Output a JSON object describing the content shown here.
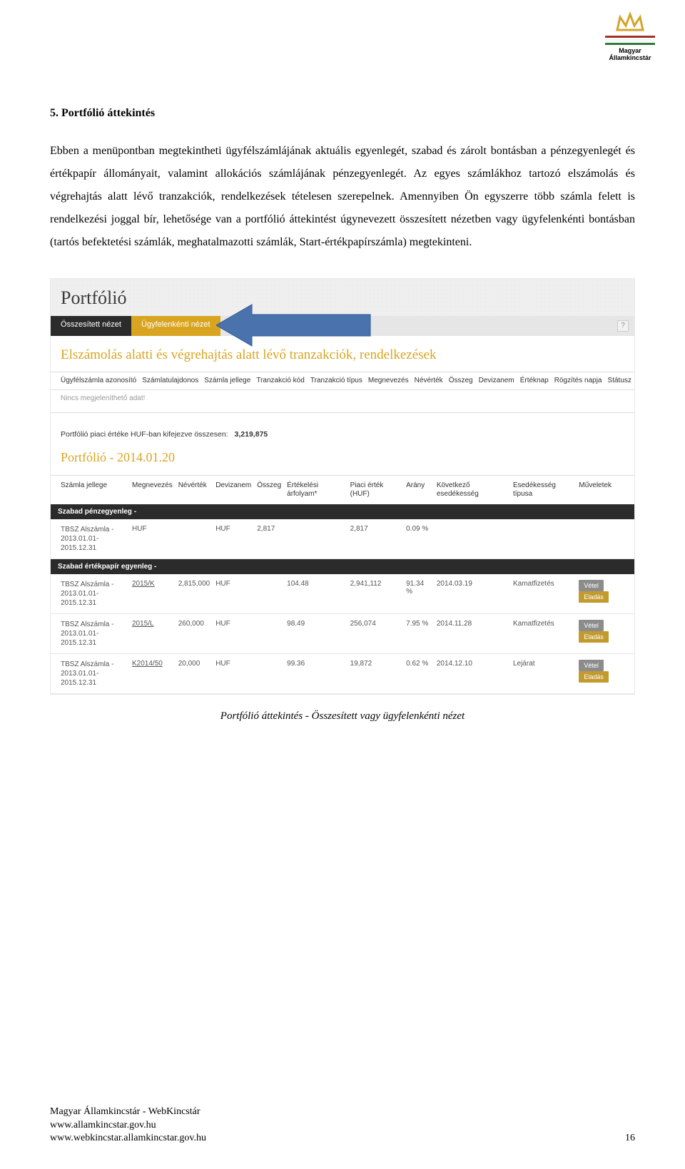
{
  "logo": {
    "org_line1": "Magyar",
    "org_line2": "Államkincstár",
    "bar_colors": [
      "#a03129",
      "#ffffff",
      "#2f7a3c"
    ],
    "icon_color": "#d2a52a"
  },
  "heading": "5. Portfólió áttekintés",
  "paragraph": "Ebben a menüpontban megtekintheti ügyfélszámlájának aktuális egyenlegét, szabad és zárolt bontásban a pénzegyenlegét és értékpapír állományait, valamint allokációs számlájának pénzegyenlegét. Az egyes számlákhoz tartozó elszámolás és végrehajtás alatt lévő tranzakciók, rendelkezések tételesen szerepelnek. Amennyiben Ön egyszerre több számla felett is rendelkezési joggal bír, lehetősége van a portfólió áttekintést úgynevezett összesített nézetben vagy ügyfelenkénti bontásban (tartós befektetési számlák, meghatalmazotti számlák, Start-értékpapírszámla) megtekinteni.",
  "screenshot": {
    "header_title": "Portfólió",
    "tabs": {
      "t1": "Összesített nézet",
      "t2": "Ügyfelenkénti nézet"
    },
    "help": "?",
    "arrow_color": "#4a73ad",
    "sub_heading": "Elszámolás alatti és végrehajtás alatt lévő tranzakciók, rendelkezések",
    "tx_columns": [
      "Ügyfélszámla azonosító",
      "Számlatulajdonos",
      "Számla jellege",
      "Tranzakció kód",
      "Tranzakció típus",
      "Megnevezés",
      "Névérték",
      "Összeg",
      "Devizanem",
      "Értéknap",
      "Rögzítés napja",
      "Státusz"
    ],
    "no_data": "Nincs megjeleníthető adat!",
    "total": {
      "label": "Portfólió piaci értéke HUF-ban kifejezve összesen:",
      "value": "3,219,875"
    },
    "pf_title": "Portfólió - 2014.01.20",
    "pf_columns": [
      "Számla jellege",
      "Megnevezés",
      "Névérték",
      "Devizanem",
      "Összeg",
      "Értékelési árfolyam*",
      "Piaci érték (HUF)",
      "Arány",
      "Következő esedékesség",
      "Esedékesség típusa",
      "Műveletek"
    ],
    "group1_label": "Szabad pénzegyenleg -",
    "group2_label": "Szabad értékpapír egyenleg -",
    "buy_label": "Vétel",
    "sell_label": "Eladás",
    "rows_g1": [
      {
        "acct": "TBSZ Alszámla - 2013.01.01-2015.12.31",
        "name": "HUF",
        "nv": "",
        "dev": "HUF",
        "osszeg": "2,817",
        "arf": "",
        "piaci": "2,817",
        "arany": "0.09 %",
        "kov": "",
        "esed": "",
        "ops": false
      }
    ],
    "rows_g2": [
      {
        "acct": "TBSZ Alszámla - 2013.01.01-2015.12.31",
        "name": "2015/K",
        "nv": "2,815,000",
        "dev": "HUF",
        "osszeg": "",
        "arf": "104.48",
        "piaci": "2,941,112",
        "arany": "91.34 %",
        "kov": "2014.03.19",
        "esed": "Kamatfizetés",
        "ops": true
      },
      {
        "acct": "TBSZ Alszámla - 2013.01.01-2015.12.31",
        "name": "2015/L",
        "nv": "260,000",
        "dev": "HUF",
        "osszeg": "",
        "arf": "98.49",
        "piaci": "256,074",
        "arany": "7.95 %",
        "kov": "2014.11.28",
        "esed": "Kamatfizetés",
        "ops": true
      },
      {
        "acct": "TBSZ Alszámla - 2013.01.01-2015.12.31",
        "name": "K2014/50",
        "nv": "20,000",
        "dev": "HUF",
        "osszeg": "",
        "arf": "99.36",
        "piaci": "19,872",
        "arany": "0.62 %",
        "kov": "2014.12.10",
        "esed": "Lejárat",
        "ops": true
      }
    ]
  },
  "caption": "Portfólió áttekintés - Összesített vagy ügyfelenkénti nézet",
  "footer": {
    "line1": "Magyar Államkincstár - WebKincstár",
    "line2": "www.allamkincstar.gov.hu",
    "line3": "www.webkincstar.allamkincstar.gov.hu",
    "page": "16"
  }
}
